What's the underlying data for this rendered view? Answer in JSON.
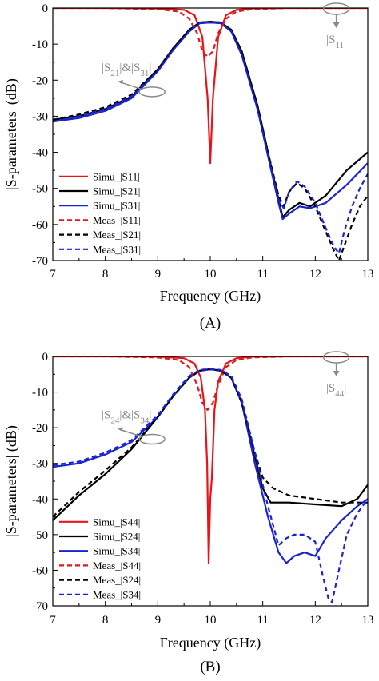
{
  "chart_data": [
    {
      "type": "line",
      "panel_label": "(A)",
      "xlabel": "Frequency (GHz)",
      "ylabel": "|S-parameters| (dB)",
      "xlim": [
        7,
        13
      ],
      "ylim": [
        -70,
        0
      ],
      "xticks": [
        7,
        8,
        9,
        10,
        11,
        12,
        13
      ],
      "yticks": [
        0,
        -10,
        -20,
        -30,
        -40,
        -50,
        -60,
        -70
      ],
      "legend_position": "lower-left",
      "annotations": [
        {
          "text": "|S11|",
          "points_to": [
            12.4,
            0
          ]
        },
        {
          "text": "|S21|&|S31|",
          "points_to": [
            8.8,
            -23
          ]
        }
      ],
      "series": [
        {
          "name": "Simu_|S11|",
          "color": "#e8141a",
          "style": "solid",
          "x": [
            7,
            8,
            9,
            9.5,
            9.7,
            9.85,
            9.95,
            10.0,
            10.05,
            10.15,
            10.3,
            10.5,
            10.8,
            11.5,
            13
          ],
          "y": [
            0,
            0,
            -0.1,
            -0.5,
            -2,
            -8,
            -25,
            -43,
            -25,
            -8,
            -2,
            -0.5,
            -0.1,
            0,
            0
          ]
        },
        {
          "name": "Simu_|S21|",
          "color": "#000000",
          "style": "solid",
          "x": [
            7,
            7.5,
            8,
            8.5,
            9,
            9.3,
            9.6,
            9.8,
            10.0,
            10.2,
            10.4,
            10.6,
            10.9,
            11.1,
            11.3,
            11.38,
            11.5,
            11.7,
            11.9,
            12.2,
            12.6,
            13
          ],
          "y": [
            -31,
            -30,
            -28,
            -24.5,
            -17,
            -11,
            -6,
            -4,
            -3.8,
            -4,
            -6,
            -12,
            -27,
            -40,
            -53,
            -58,
            -56,
            -54,
            -55,
            -52,
            -45,
            -40
          ]
        },
        {
          "name": "Simu_|S31|",
          "color": "#1a23d4",
          "style": "solid",
          "x": [
            7,
            7.5,
            8,
            8.5,
            9,
            9.3,
            9.6,
            9.8,
            10.0,
            10.2,
            10.4,
            10.6,
            10.9,
            11.1,
            11.3,
            11.38,
            11.5,
            11.7,
            11.9,
            12.2,
            12.6,
            13
          ],
          "y": [
            -31.5,
            -30.5,
            -28.5,
            -25,
            -17.5,
            -11.5,
            -6.5,
            -4.2,
            -4,
            -4.2,
            -6.5,
            -13,
            -28,
            -41,
            -54,
            -58.5,
            -57,
            -55,
            -55.5,
            -54,
            -49,
            -43
          ]
        },
        {
          "name": "Meas_|S11|",
          "color": "#e8141a",
          "style": "dashed",
          "x": [
            7,
            8,
            9,
            9.4,
            9.6,
            9.75,
            9.85,
            9.95,
            10.05,
            10.15,
            10.3,
            10.5,
            10.8,
            11.5,
            13
          ],
          "y": [
            0,
            0,
            -0.3,
            -1,
            -3,
            -7,
            -12,
            -13.5,
            -12,
            -7,
            -3,
            -1,
            -0.3,
            0,
            0
          ]
        },
        {
          "name": "Meas_|S21|",
          "color": "#000000",
          "style": "dashed",
          "x": [
            7,
            7.5,
            8,
            8.5,
            9,
            9.3,
            9.6,
            9.8,
            10.0,
            10.2,
            10.4,
            10.6,
            10.9,
            11.1,
            11.3,
            11.4,
            11.5,
            11.65,
            11.8,
            12.0,
            12.2,
            12.35,
            12.45,
            12.55,
            12.7,
            12.85,
            13
          ],
          "y": [
            -31,
            -29.5,
            -27.5,
            -24,
            -17,
            -11,
            -6,
            -4,
            -3.8,
            -4,
            -6,
            -12,
            -27,
            -40,
            -52,
            -55,
            -51,
            -48.5,
            -50,
            -55,
            -62,
            -67,
            -70,
            -66,
            -60,
            -55,
            -52
          ]
        },
        {
          "name": "Meas_|S31|",
          "color": "#1a23d4",
          "style": "dashed",
          "x": [
            7,
            7.5,
            8,
            8.5,
            9,
            9.3,
            9.6,
            9.8,
            10.0,
            10.2,
            10.4,
            10.6,
            10.9,
            11.1,
            11.3,
            11.4,
            11.5,
            11.65,
            11.8,
            12.0,
            12.2,
            12.35,
            12.45,
            12.55,
            12.7,
            12.85,
            13
          ],
          "y": [
            -31.5,
            -30,
            -28,
            -24.5,
            -17.5,
            -11.5,
            -6.5,
            -4.2,
            -4,
            -4.2,
            -6.5,
            -13,
            -28,
            -41,
            -53,
            -55.5,
            -51,
            -48,
            -49.5,
            -54,
            -61,
            -66,
            -68,
            -62,
            -55,
            -50,
            -46
          ]
        }
      ]
    },
    {
      "type": "line",
      "panel_label": "(B)",
      "xlabel": "Frequency (GHz)",
      "ylabel": "|S-parameters| (dB)",
      "xlim": [
        7,
        13
      ],
      "ylim": [
        -70,
        0
      ],
      "xticks": [
        7,
        8,
        9,
        10,
        11,
        12,
        13
      ],
      "yticks": [
        0,
        -10,
        -20,
        -30,
        -40,
        -50,
        -60,
        -70
      ],
      "legend_position": "lower-left",
      "annotations": [
        {
          "text": "|S44|",
          "points_to": [
            12.4,
            0
          ]
        },
        {
          "text": "|S24|&|S34|",
          "points_to": [
            8.8,
            -23
          ]
        }
      ],
      "series": [
        {
          "name": "Simu_|S44|",
          "color": "#e8141a",
          "style": "solid",
          "x": [
            7,
            8,
            9,
            9.5,
            9.7,
            9.82,
            9.9,
            9.94,
            9.97,
            10.0,
            10.03,
            10.08,
            10.15,
            10.3,
            10.5,
            10.8,
            11.5,
            13
          ],
          "y": [
            0,
            0,
            -0.1,
            -0.5,
            -2,
            -6,
            -15,
            -30,
            -58,
            -40,
            -34,
            -15,
            -7,
            -2,
            -0.5,
            -0.1,
            0,
            0
          ]
        },
        {
          "name": "Simu_|S24|",
          "color": "#000000",
          "style": "solid",
          "x": [
            7,
            7.5,
            8,
            8.5,
            9,
            9.3,
            9.6,
            9.8,
            10.0,
            10.2,
            10.4,
            10.6,
            10.85,
            11.0,
            11.15,
            11.5,
            12.0,
            12.5,
            12.8,
            13
          ],
          "y": [
            -46,
            -39,
            -33,
            -26,
            -17,
            -11,
            -6,
            -4,
            -3.6,
            -4,
            -6,
            -13,
            -28,
            -37,
            -41,
            -41,
            -41.5,
            -42,
            -40,
            -36
          ]
        },
        {
          "name": "Simu_|S34|",
          "color": "#1a23d4",
          "style": "solid",
          "x": [
            7,
            7.5,
            8,
            8.5,
            9,
            9.3,
            9.6,
            9.8,
            10.0,
            10.2,
            10.4,
            10.6,
            10.85,
            11.1,
            11.3,
            11.45,
            11.6,
            11.8,
            12.0,
            12.2,
            12.5,
            12.8,
            13
          ],
          "y": [
            -31,
            -30,
            -27.5,
            -24,
            -17,
            -11,
            -6,
            -4,
            -3.6,
            -4,
            -6,
            -13,
            -30,
            -45,
            -55,
            -58,
            -56,
            -55,
            -56,
            -51,
            -46,
            -42,
            -40
          ]
        },
        {
          "name": "Meas_|S44|",
          "color": "#e8141a",
          "style": "dashed",
          "x": [
            7,
            8,
            9,
            9.4,
            9.6,
            9.75,
            9.85,
            9.95,
            10.05,
            10.15,
            10.3,
            10.5,
            10.8,
            11.5,
            13
          ],
          "y": [
            0,
            0,
            -0.3,
            -1,
            -3,
            -8,
            -13,
            -15,
            -13,
            -8,
            -3,
            -1,
            -0.3,
            0,
            0
          ]
        },
        {
          "name": "Meas_|S24|",
          "color": "#000000",
          "style": "dashed",
          "x": [
            7,
            7.5,
            8,
            8.5,
            9,
            9.3,
            9.6,
            9.8,
            10.0,
            10.2,
            10.4,
            10.6,
            10.85,
            11.0,
            11.2,
            11.5,
            12.0,
            12.5,
            13
          ],
          "y": [
            -45,
            -38,
            -32,
            -25.5,
            -17,
            -11,
            -6,
            -4,
            -3.6,
            -4,
            -6,
            -13,
            -27,
            -34,
            -37,
            -39,
            -40,
            -41,
            -41
          ]
        },
        {
          "name": "Meas_|S34|",
          "color": "#1a23d4",
          "style": "dashed",
          "x": [
            7,
            7.5,
            8,
            8.5,
            9,
            9.3,
            9.6,
            9.8,
            10.0,
            10.2,
            10.4,
            10.6,
            10.85,
            11.1,
            11.3,
            11.45,
            11.6,
            11.8,
            12.0,
            12.15,
            12.25,
            12.32,
            12.45,
            12.6,
            12.8,
            13
          ],
          "y": [
            -30.5,
            -29.5,
            -27,
            -23.5,
            -16.5,
            -10.5,
            -5.5,
            -3.8,
            -3.5,
            -3.8,
            -5.5,
            -12,
            -27,
            -42,
            -53,
            -51,
            -50,
            -50,
            -52,
            -62,
            -68,
            -69,
            -60,
            -50,
            -44,
            -40
          ]
        }
      ]
    }
  ]
}
